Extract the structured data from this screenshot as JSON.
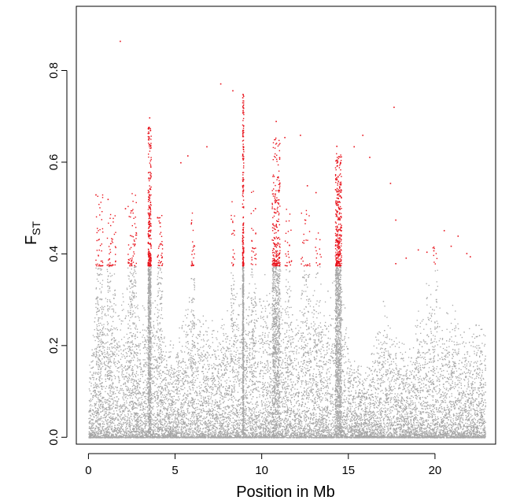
{
  "chart_data": {
    "type": "scatter",
    "title": "",
    "xlabel": "Position in Mb",
    "ylabel": {
      "main": "F",
      "sub": "ST"
    },
    "xlim": [
      -0.7,
      23.5
    ],
    "ylim": [
      -0.015,
      0.94
    ],
    "x_ticks": [
      0,
      5,
      10,
      15,
      20
    ],
    "y_ticks": [
      0.0,
      0.2,
      0.4,
      0.6,
      0.8
    ],
    "y_tick_labels": [
      "0.0",
      "0.2",
      "0.4",
      "0.6",
      "0.8"
    ],
    "threshold": 0.375,
    "grid": false,
    "legend": "none",
    "colors": {
      "background_points": "#a6a6a6",
      "outlier_points": "#e8121b",
      "axis": "#000000"
    },
    "x_range": [
      0,
      22.9
    ],
    "outliers": [
      {
        "x": 1.8,
        "y": 0.865
      },
      {
        "x": 3.5,
        "y": 0.698
      },
      {
        "x": 3.45,
        "y": 0.65
      },
      {
        "x": 5.3,
        "y": 0.6
      },
      {
        "x": 5.7,
        "y": 0.615
      },
      {
        "x": 6.8,
        "y": 0.635
      },
      {
        "x": 7.6,
        "y": 0.772
      },
      {
        "x": 8.3,
        "y": 0.757
      },
      {
        "x": 8.9,
        "y": 0.748
      },
      {
        "x": 8.9,
        "y": 0.72
      },
      {
        "x": 10.8,
        "y": 0.69
      },
      {
        "x": 11.3,
        "y": 0.655
      },
      {
        "x": 12.2,
        "y": 0.66
      },
      {
        "x": 14.3,
        "y": 0.636
      },
      {
        "x": 15.3,
        "y": 0.635
      },
      {
        "x": 15.8,
        "y": 0.66
      },
      {
        "x": 16.2,
        "y": 0.612
      },
      {
        "x": 17.6,
        "y": 0.721
      },
      {
        "x": 17.4,
        "y": 0.555
      },
      {
        "x": 17.7,
        "y": 0.475
      },
      {
        "x": 18.3,
        "y": 0.392
      },
      {
        "x": 19.0,
        "y": 0.41
      },
      {
        "x": 19.5,
        "y": 0.405
      },
      {
        "x": 19.9,
        "y": 0.408
      },
      {
        "x": 20.5,
        "y": 0.452
      },
      {
        "x": 20.9,
        "y": 0.418
      },
      {
        "x": 21.3,
        "y": 0.44
      },
      {
        "x": 21.8,
        "y": 0.402
      },
      {
        "x": 0.4,
        "y": 0.53
      },
      {
        "x": 1.1,
        "y": 0.52
      },
      {
        "x": 2.1,
        "y": 0.5
      },
      {
        "x": 12.6,
        "y": 0.55
      },
      {
        "x": 13.1,
        "y": 0.535
      },
      {
        "x": 9.6,
        "y": 0.5
      },
      {
        "x": 17.7,
        "y": 0.38
      },
      {
        "x": 22.0,
        "y": 0.395
      }
    ],
    "peaks": [
      {
        "x": 3.5,
        "width": 0.18,
        "top": 0.68,
        "count": 240
      },
      {
        "x": 8.9,
        "width": 0.07,
        "top": 0.75,
        "count": 190
      },
      {
        "x": 10.8,
        "width": 0.45,
        "top": 0.66,
        "count": 230
      },
      {
        "x": 14.4,
        "width": 0.35,
        "top": 0.62,
        "count": 320
      },
      {
        "x": 0.6,
        "width": 0.4,
        "top": 0.53,
        "count": 40
      },
      {
        "x": 1.3,
        "width": 0.5,
        "top": 0.49,
        "count": 40
      },
      {
        "x": 2.5,
        "width": 0.5,
        "top": 0.54,
        "count": 60
      },
      {
        "x": 4.1,
        "width": 0.3,
        "top": 0.5,
        "count": 40
      },
      {
        "x": 6.0,
        "width": 0.2,
        "top": 0.5,
        "count": 25
      },
      {
        "x": 8.3,
        "width": 0.2,
        "top": 0.52,
        "count": 20
      },
      {
        "x": 9.5,
        "width": 0.3,
        "top": 0.54,
        "count": 25
      },
      {
        "x": 11.5,
        "width": 0.4,
        "top": 0.5,
        "count": 25
      },
      {
        "x": 12.5,
        "width": 0.5,
        "top": 0.5,
        "count": 25
      },
      {
        "x": 13.2,
        "width": 0.4,
        "top": 0.45,
        "count": 15
      },
      {
        "x": 20.0,
        "width": 0.3,
        "top": 0.42,
        "count": 8
      }
    ],
    "envelope": [
      [
        0.0,
        0.2
      ],
      [
        0.5,
        0.34
      ],
      [
        1.0,
        0.36
      ],
      [
        1.5,
        0.3
      ],
      [
        2.0,
        0.35
      ],
      [
        2.5,
        0.37
      ],
      [
        3.0,
        0.28
      ],
      [
        3.5,
        0.37
      ],
      [
        4.0,
        0.34
      ],
      [
        4.5,
        0.25
      ],
      [
        5.0,
        0.22
      ],
      [
        5.5,
        0.3
      ],
      [
        6.0,
        0.34
      ],
      [
        6.5,
        0.28
      ],
      [
        7.0,
        0.27
      ],
      [
        7.5,
        0.25
      ],
      [
        8.0,
        0.3
      ],
      [
        8.5,
        0.37
      ],
      [
        9.0,
        0.37
      ],
      [
        9.5,
        0.36
      ],
      [
        10.0,
        0.37
      ],
      [
        10.5,
        0.37
      ],
      [
        11.0,
        0.37
      ],
      [
        11.5,
        0.36
      ],
      [
        12.0,
        0.33
      ],
      [
        12.5,
        0.34
      ],
      [
        13.0,
        0.35
      ],
      [
        13.5,
        0.33
      ],
      [
        14.0,
        0.37
      ],
      [
        14.5,
        0.37
      ],
      [
        15.0,
        0.24
      ],
      [
        15.5,
        0.18
      ],
      [
        16.0,
        0.16
      ],
      [
        16.5,
        0.22
      ],
      [
        17.0,
        0.32
      ],
      [
        17.5,
        0.3
      ],
      [
        18.0,
        0.22
      ],
      [
        18.5,
        0.2
      ],
      [
        19.0,
        0.28
      ],
      [
        19.5,
        0.35
      ],
      [
        20.0,
        0.34
      ],
      [
        20.5,
        0.3
      ],
      [
        21.0,
        0.32
      ],
      [
        21.5,
        0.26
      ],
      [
        22.0,
        0.24
      ],
      [
        22.5,
        0.27
      ],
      [
        22.9,
        0.26
      ]
    ]
  }
}
